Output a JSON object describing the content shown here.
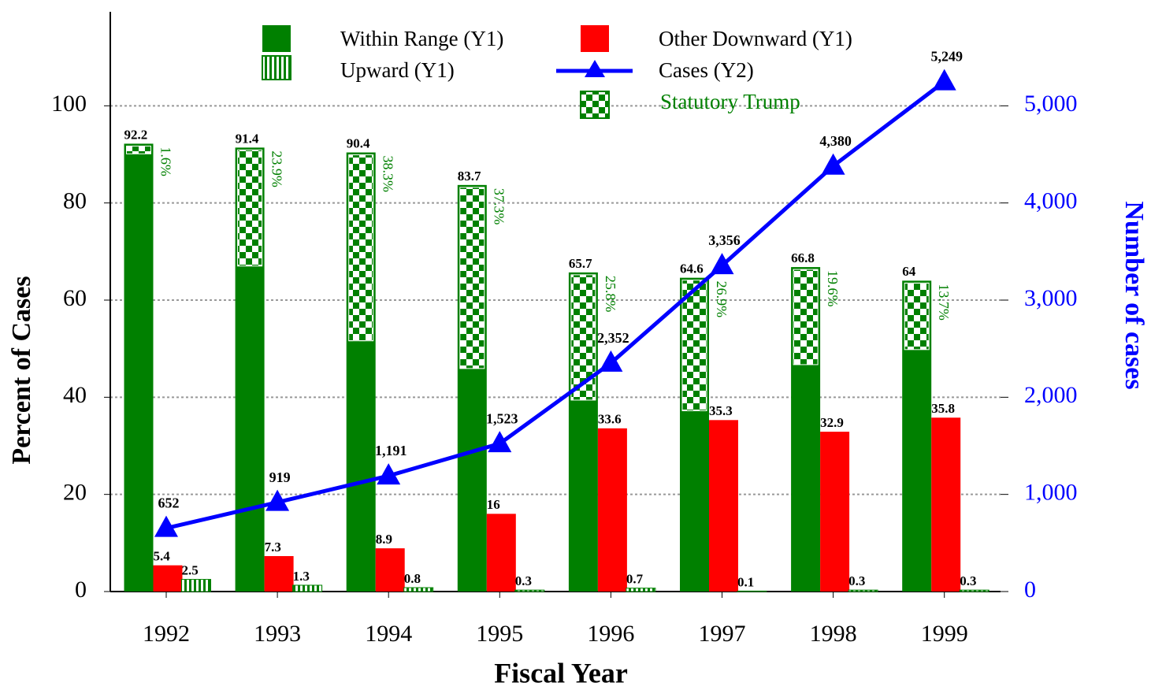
{
  "chart_data": {
    "type": "bar",
    "xlabel": "Fiscal Year",
    "ylabel": "Percent of Cases",
    "y2label": "Number of cases",
    "categories": [
      "1992",
      "1993",
      "1994",
      "1995",
      "1996",
      "1997",
      "1998",
      "1999"
    ],
    "series": [
      {
        "name": "Within Range (Y1)",
        "color": "#008000",
        "values": [
          92.2,
          91.4,
          90.4,
          83.7,
          65.7,
          64.6,
          66.8,
          64
        ]
      },
      {
        "name": "Other Downward (Y1)",
        "color": "#ff0000",
        "values": [
          5.4,
          7.3,
          8.9,
          16,
          33.6,
          35.3,
          32.9,
          35.8
        ]
      },
      {
        "name": "Upward (Y1)",
        "color": "#008000",
        "pattern": "stripes",
        "values": [
          2.5,
          1.3,
          0.8,
          0.3,
          0.7,
          0.1,
          0.3,
          0.3
        ]
      },
      {
        "name": "Cases (Y2)",
        "type": "line",
        "color": "#0000ff",
        "axis": "y2",
        "values": [
          652,
          919,
          1191,
          1523,
          2352,
          3356,
          4380,
          5249
        ],
        "value_labels": [
          "652",
          "919",
          "1,191",
          "1,523",
          "2,352",
          "3,356",
          "4,380",
          "5,249"
        ]
      },
      {
        "name": "Statutory Trump",
        "color": "#008000",
        "pattern": "checker",
        "values": [
          1.6,
          23.9,
          38.3,
          37.3,
          25.8,
          26.9,
          19.6,
          13.7
        ],
        "value_labels": [
          "1.6%",
          "23.9%",
          "38.3%",
          "37.3%",
          "25.8%",
          "26.9%",
          "19.6%",
          "13.7%"
        ]
      }
    ],
    "ylim": [
      0,
      120
    ],
    "yticks": [
      0,
      20,
      40,
      60,
      80,
      100
    ],
    "y2lim": [
      0,
      6000
    ],
    "y2ticks": [
      0,
      {
        "value": 1000,
        "label": "1,000"
      },
      {
        "value": 2000,
        "label": "2,000"
      },
      {
        "value": 3000,
        "label": "3,000"
      },
      {
        "value": 4000,
        "label": "4,000"
      },
      {
        "value": 5000,
        "label": "5,000"
      }
    ],
    "grid": true
  }
}
